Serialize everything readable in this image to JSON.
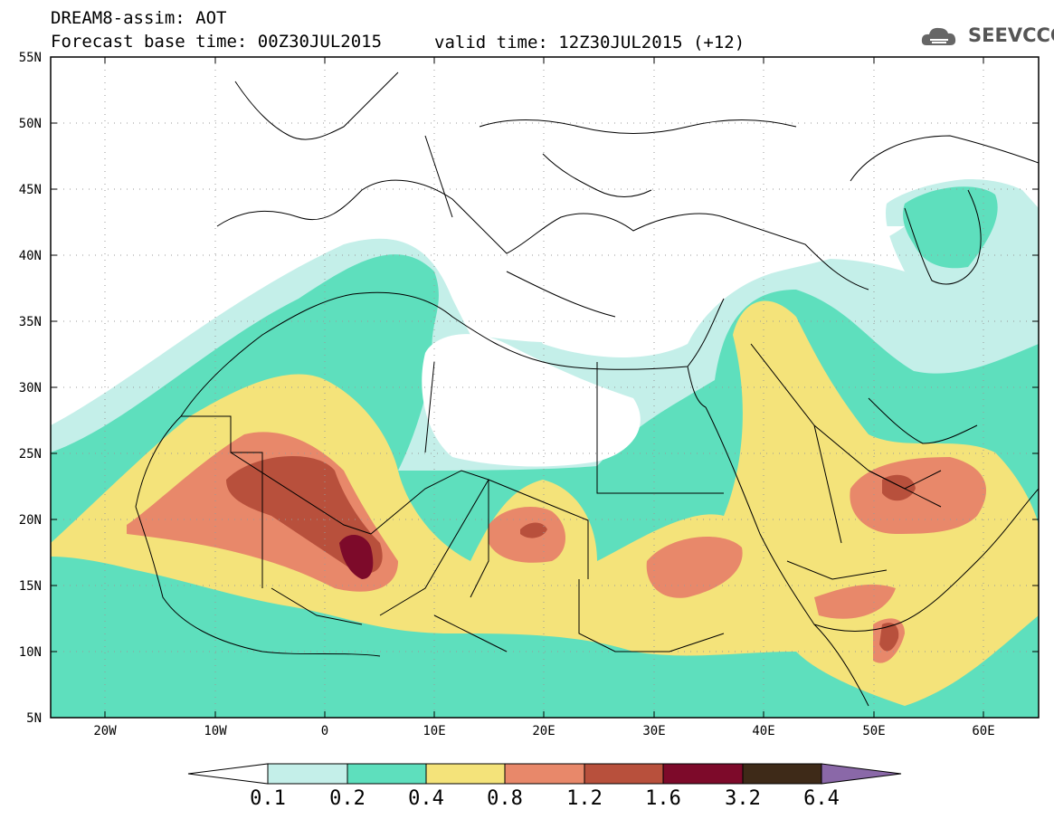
{
  "header": {
    "title": "DREAM8-assim: AOT",
    "base_time": "Forecast base time: 00Z30JUL2015",
    "valid_time": "valid time: 12Z30JUL2015 (+12)",
    "logo": "SEEVCCC"
  },
  "map": {
    "lat_labels": [
      "55N",
      "50N",
      "45N",
      "40N",
      "35N",
      "30N",
      "25N",
      "20N",
      "15N",
      "10N",
      "5N"
    ],
    "lon_labels": [
      "20W",
      "10W",
      "0",
      "10E",
      "20E",
      "30E",
      "40E",
      "50E",
      "60E"
    ],
    "lon_range": [
      -25,
      65
    ],
    "lat_range": [
      5,
      55
    ],
    "grid": "dotted"
  },
  "colorbar": {
    "labels": [
      "0.1",
      "0.2",
      "0.4",
      "0.8",
      "1.2",
      "1.6",
      "3.2",
      "6.4"
    ],
    "colors": {
      "c0": "#ffffff",
      "c1": "#c4efe9",
      "c2": "#5edfbd",
      "c3": "#f4e37a",
      "c4": "#e8886a",
      "c5": "#b8503c",
      "c6": "#7d0a2a",
      "c7": "#3e2a18",
      "c8": "#8a68a8"
    }
  }
}
